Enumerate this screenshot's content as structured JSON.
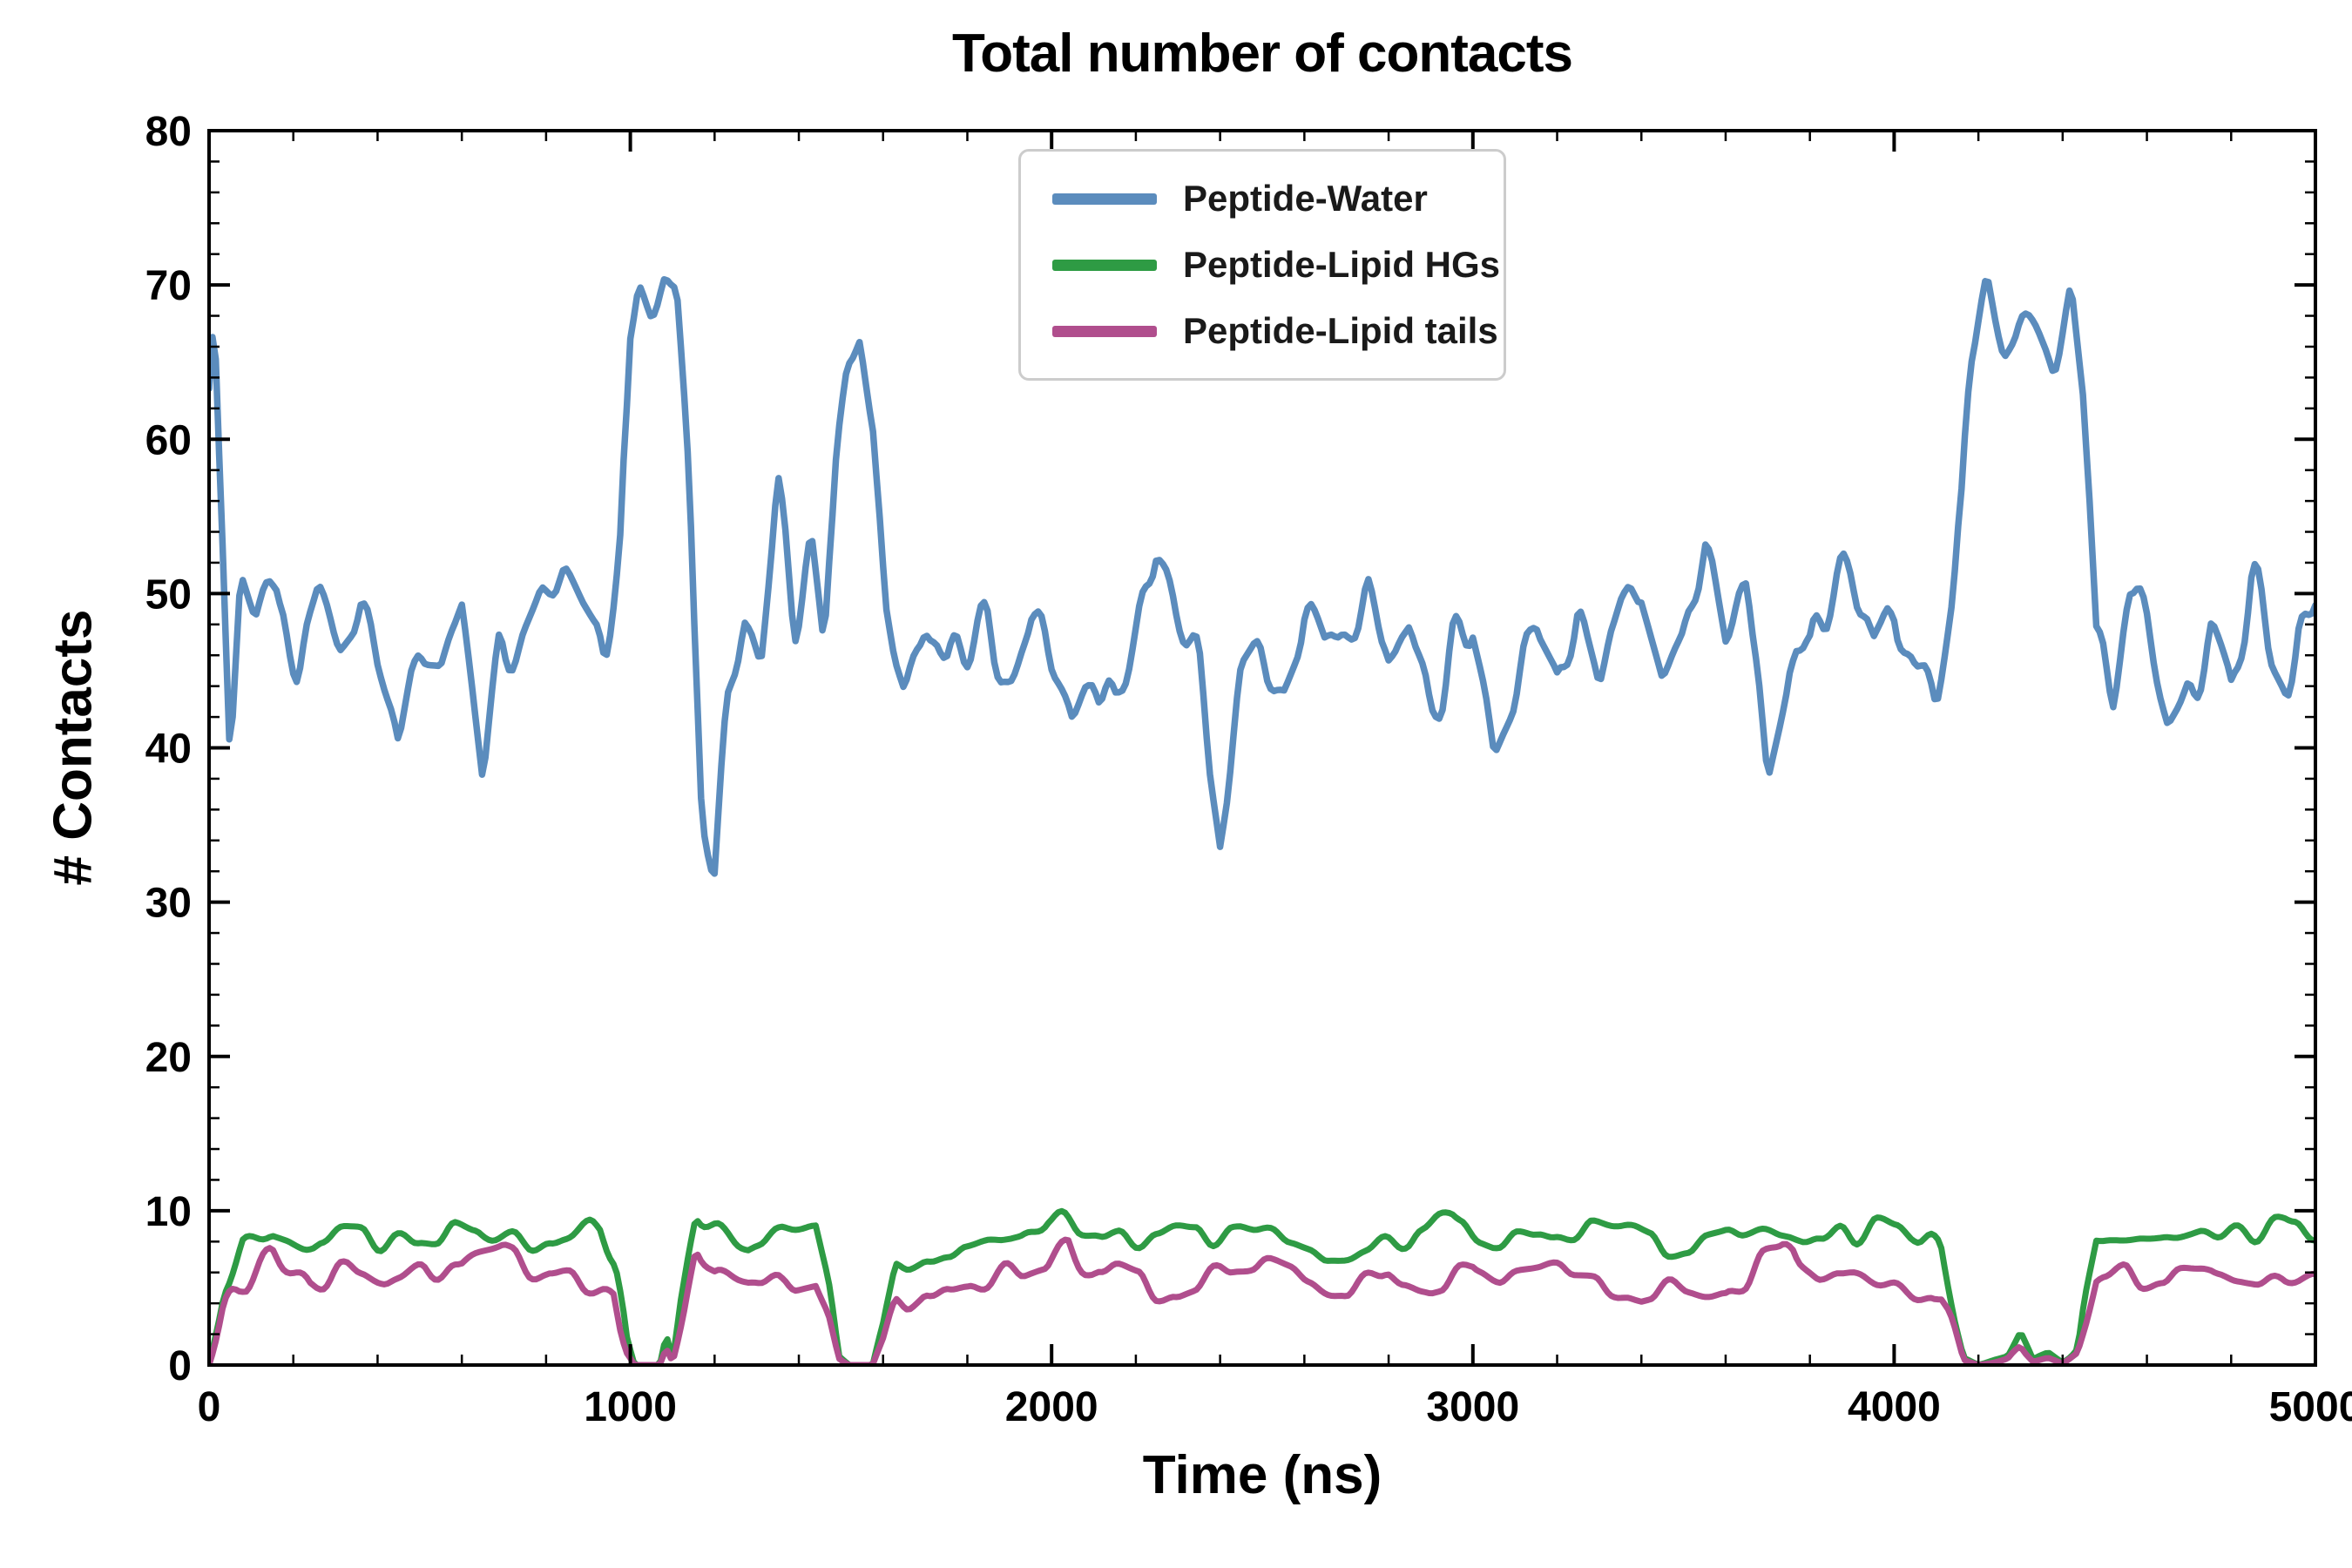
{
  "figure": {
    "background": "#ffffff",
    "text_color": "#000000"
  },
  "chart_data": {
    "type": "line",
    "title": "Total number of contacts",
    "xlabel": "Time (ns)",
    "ylabel": "# Contacts",
    "xlim": [
      0,
      5000
    ],
    "ylim": [
      0,
      80
    ],
    "x_ticks": [
      0,
      1000,
      2000,
      3000,
      4000,
      5000
    ],
    "y_ticks": [
      0,
      10,
      20,
      30,
      40,
      50,
      60,
      70,
      80
    ],
    "x_minor_step": 200,
    "y_minor_step": 2,
    "grid": false,
    "legend_position": "upper center inside",
    "axes_color": "#000000",
    "series": [
      {
        "name": "Peptide-Water",
        "color": "#5b8cbd",
        "width": 7.5,
        "seed": 11,
        "clamp_zero": false,
        "noise": [
          {
            "period": 34,
            "amp": 2.7
          },
          {
            "period": 120,
            "amp": 2.4
          }
        ],
        "anchors": [
          [
            0,
            63
          ],
          [
            12,
            68
          ],
          [
            30,
            54
          ],
          [
            50,
            38
          ],
          [
            75,
            50
          ],
          [
            110,
            47
          ],
          [
            160,
            49
          ],
          [
            210,
            46
          ],
          [
            260,
            50
          ],
          [
            310,
            47
          ],
          [
            360,
            49
          ],
          [
            410,
            46
          ],
          [
            450,
            41
          ],
          [
            500,
            49
          ],
          [
            550,
            47
          ],
          [
            600,
            49
          ],
          [
            650,
            38
          ],
          [
            690,
            48
          ],
          [
            740,
            47
          ],
          [
            790,
            49
          ],
          [
            840,
            48
          ],
          [
            890,
            46
          ],
          [
            940,
            45
          ],
          [
            975,
            52
          ],
          [
            1000,
            66
          ],
          [
            1020,
            70
          ],
          [
            1050,
            68
          ],
          [
            1080,
            69
          ],
          [
            1110,
            68
          ],
          [
            1140,
            57
          ],
          [
            1170,
            38
          ],
          [
            1200,
            35
          ],
          [
            1230,
            44
          ],
          [
            1270,
            50
          ],
          [
            1310,
            46
          ],
          [
            1350,
            57
          ],
          [
            1390,
            49
          ],
          [
            1430,
            52
          ],
          [
            1460,
            45
          ],
          [
            1490,
            60
          ],
          [
            1515,
            66
          ],
          [
            1545,
            68
          ],
          [
            1575,
            62
          ],
          [
            1605,
            49
          ],
          [
            1650,
            45
          ],
          [
            1700,
            50
          ],
          [
            1750,
            46
          ],
          [
            1800,
            48
          ],
          [
            1850,
            50
          ],
          [
            1900,
            46
          ],
          [
            1950,
            48
          ],
          [
            2000,
            44
          ],
          [
            2050,
            40
          ],
          [
            2100,
            46
          ],
          [
            2150,
            44
          ],
          [
            2200,
            48
          ],
          [
            2250,
            54
          ],
          [
            2300,
            49
          ],
          [
            2350,
            46
          ],
          [
            2400,
            37
          ],
          [
            2450,
            46
          ],
          [
            2500,
            48
          ],
          [
            2550,
            45
          ],
          [
            2600,
            47
          ],
          [
            2650,
            44
          ],
          [
            2700,
            47
          ],
          [
            2750,
            50
          ],
          [
            2800,
            46
          ],
          [
            2850,
            48
          ],
          [
            2900,
            42
          ],
          [
            2950,
            47
          ],
          [
            3000,
            50
          ],
          [
            3050,
            43
          ],
          [
            3100,
            46
          ],
          [
            3150,
            48
          ],
          [
            3200,
            44
          ],
          [
            3250,
            48
          ],
          [
            3300,
            42
          ],
          [
            3350,
            46
          ],
          [
            3400,
            48
          ],
          [
            3450,
            44
          ],
          [
            3500,
            48
          ],
          [
            3550,
            55
          ],
          [
            3600,
            47
          ],
          [
            3650,
            49
          ],
          [
            3700,
            40
          ],
          [
            3750,
            46
          ],
          [
            3800,
            44
          ],
          [
            3850,
            48
          ],
          [
            3900,
            50
          ],
          [
            3950,
            45
          ],
          [
            4000,
            49
          ],
          [
            4050,
            46
          ],
          [
            4100,
            42
          ],
          [
            4140,
            50
          ],
          [
            4180,
            66
          ],
          [
            4220,
            71
          ],
          [
            4260,
            66
          ],
          [
            4300,
            68
          ],
          [
            4340,
            67
          ],
          [
            4380,
            65
          ],
          [
            4420,
            70
          ],
          [
            4450,
            62
          ],
          [
            4480,
            47
          ],
          [
            4520,
            44
          ],
          [
            4560,
            48
          ],
          [
            4600,
            46
          ],
          [
            4650,
            42
          ],
          [
            4700,
            46
          ],
          [
            4750,
            49
          ],
          [
            4800,
            44
          ],
          [
            4850,
            50
          ],
          [
            4900,
            46
          ],
          [
            4950,
            43
          ],
          [
            5000,
            48
          ]
        ]
      },
      {
        "name": "Peptide-Lipid HGs",
        "color": "#2e9b44",
        "width": 7,
        "seed": 23,
        "clamp_zero": true,
        "noise": [
          {
            "period": 45,
            "amp": 0.9
          },
          {
            "period": 160,
            "amp": 0.6
          }
        ],
        "anchors": [
          [
            0,
            0
          ],
          [
            35,
            5
          ],
          [
            80,
            8
          ],
          [
            150,
            9
          ],
          [
            250,
            8
          ],
          [
            350,
            8.5
          ],
          [
            450,
            8
          ],
          [
            550,
            8.5
          ],
          [
            650,
            8
          ],
          [
            750,
            8.5
          ],
          [
            850,
            8
          ],
          [
            930,
            8.5
          ],
          [
            965,
            6
          ],
          [
            990,
            1.5
          ],
          [
            1010,
            0
          ],
          [
            1070,
            0
          ],
          [
            1085,
            2
          ],
          [
            1100,
            0.3
          ],
          [
            1125,
            4
          ],
          [
            1155,
            9.5
          ],
          [
            1200,
            9
          ],
          [
            1280,
            8
          ],
          [
            1360,
            8.5
          ],
          [
            1440,
            8.5
          ],
          [
            1470,
            5
          ],
          [
            1495,
            0.5
          ],
          [
            1520,
            0
          ],
          [
            1575,
            0
          ],
          [
            1600,
            2.5
          ],
          [
            1630,
            6.5
          ],
          [
            1700,
            7.5
          ],
          [
            1800,
            7.5
          ],
          [
            1900,
            8
          ],
          [
            1990,
            9.5
          ],
          [
            2050,
            9
          ],
          [
            2150,
            8
          ],
          [
            2250,
            8
          ],
          [
            2350,
            8.5
          ],
          [
            2450,
            9
          ],
          [
            2550,
            8.5
          ],
          [
            2650,
            8
          ],
          [
            2750,
            8.5
          ],
          [
            2850,
            8
          ],
          [
            2950,
            9
          ],
          [
            3050,
            8
          ],
          [
            3150,
            8
          ],
          [
            3250,
            8.5
          ],
          [
            3350,
            8
          ],
          [
            3450,
            8
          ],
          [
            3550,
            8.5
          ],
          [
            3650,
            9
          ],
          [
            3750,
            9
          ],
          [
            3850,
            8.5
          ],
          [
            3950,
            9
          ],
          [
            4050,
            8.5
          ],
          [
            4110,
            7.5
          ],
          [
            4145,
            3
          ],
          [
            4165,
            0.5
          ],
          [
            4200,
            0
          ],
          [
            4270,
            0.5
          ],
          [
            4300,
            1.8
          ],
          [
            4330,
            0.3
          ],
          [
            4365,
            1
          ],
          [
            4400,
            0.2
          ],
          [
            4435,
            1
          ],
          [
            4455,
            4
          ],
          [
            4480,
            7.5
          ],
          [
            4550,
            8
          ],
          [
            4650,
            8.5
          ],
          [
            4750,
            8.5
          ],
          [
            4850,
            8
          ],
          [
            4930,
            8.5
          ],
          [
            5000,
            8.5
          ]
        ]
      },
      {
        "name": "Peptide-Lipid tails",
        "color": "#b04e8d",
        "width": 7,
        "seed": 37,
        "clamp_zero": true,
        "noise": [
          {
            "period": 45,
            "amp": 1.0
          },
          {
            "period": 160,
            "amp": 0.6
          }
        ],
        "anchors": [
          [
            0,
            0
          ],
          [
            35,
            3.5
          ],
          [
            80,
            5.5
          ],
          [
            150,
            7
          ],
          [
            240,
            5
          ],
          [
            330,
            5.5
          ],
          [
            420,
            5
          ],
          [
            510,
            6
          ],
          [
            600,
            5.5
          ],
          [
            700,
            6.5
          ],
          [
            800,
            5.5
          ],
          [
            900,
            5.5
          ],
          [
            960,
            5
          ],
          [
            990,
            1.2
          ],
          [
            1010,
            0
          ],
          [
            1070,
            0
          ],
          [
            1085,
            1.5
          ],
          [
            1100,
            0.2
          ],
          [
            1125,
            3
          ],
          [
            1155,
            8
          ],
          [
            1200,
            6
          ],
          [
            1280,
            5
          ],
          [
            1360,
            4.5
          ],
          [
            1440,
            5
          ],
          [
            1470,
            3
          ],
          [
            1495,
            0.4
          ],
          [
            1520,
            0
          ],
          [
            1575,
            0
          ],
          [
            1600,
            1.5
          ],
          [
            1630,
            4
          ],
          [
            1700,
            5.5
          ],
          [
            1800,
            5
          ],
          [
            1900,
            5.5
          ],
          [
            1990,
            6.5
          ],
          [
            2040,
            8
          ],
          [
            2100,
            6
          ],
          [
            2200,
            5.5
          ],
          [
            2300,
            5
          ],
          [
            2400,
            6
          ],
          [
            2500,
            6.5
          ],
          [
            2600,
            5.5
          ],
          [
            2700,
            5
          ],
          [
            2800,
            6
          ],
          [
            2900,
            5.5
          ],
          [
            3000,
            6.5
          ],
          [
            3100,
            5.5
          ],
          [
            3200,
            5.5
          ],
          [
            3300,
            6
          ],
          [
            3400,
            5
          ],
          [
            3500,
            5.5
          ],
          [
            3600,
            5
          ],
          [
            3700,
            6.5
          ],
          [
            3760,
            7.5
          ],
          [
            3820,
            6
          ],
          [
            3900,
            6
          ],
          [
            4000,
            5.5
          ],
          [
            4060,
            5
          ],
          [
            4110,
            4.5
          ],
          [
            4145,
            2
          ],
          [
            4165,
            0.3
          ],
          [
            4200,
            0
          ],
          [
            4270,
            0.3
          ],
          [
            4300,
            1
          ],
          [
            4330,
            0.2
          ],
          [
            4365,
            0.5
          ],
          [
            4400,
            0.1
          ],
          [
            4435,
            0.8
          ],
          [
            4455,
            2.5
          ],
          [
            4480,
            5
          ],
          [
            4550,
            5.5
          ],
          [
            4650,
            5.5
          ],
          [
            4750,
            6
          ],
          [
            4850,
            5.5
          ],
          [
            4930,
            5
          ],
          [
            5000,
            5.5
          ]
        ]
      }
    ]
  }
}
